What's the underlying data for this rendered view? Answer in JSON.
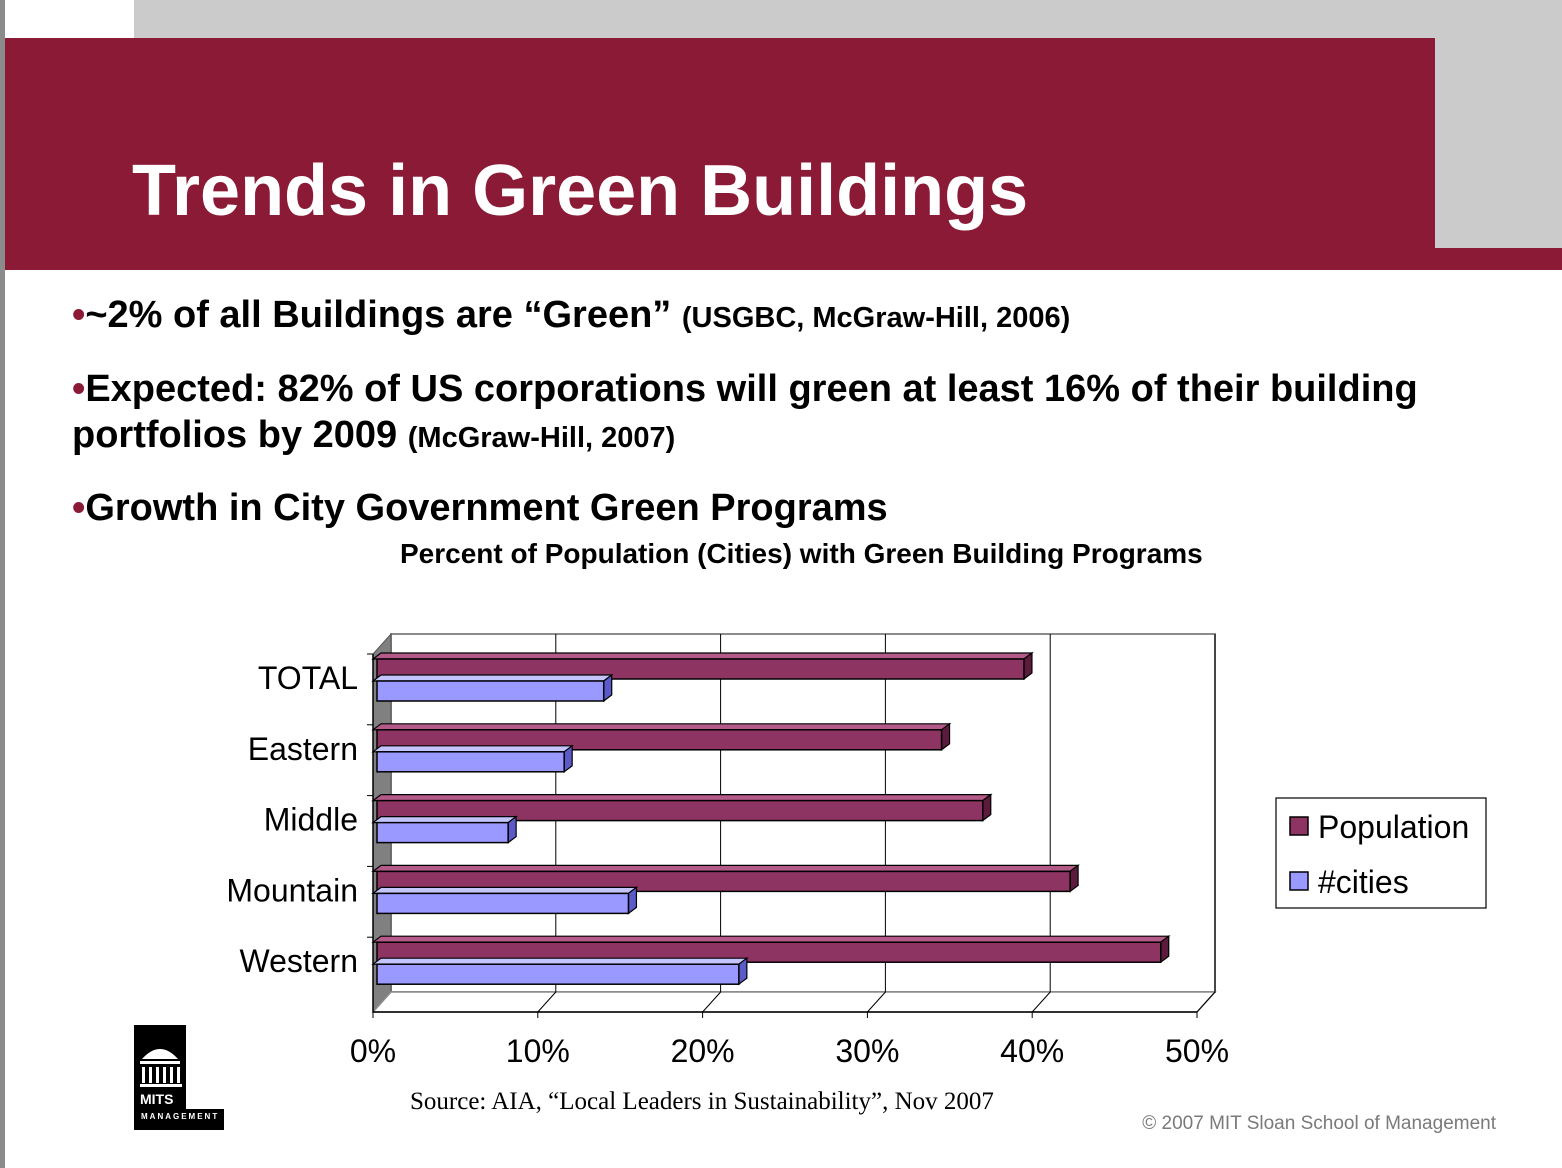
{
  "slide": {
    "title": "Trends in Green Buildings",
    "bullets": [
      {
        "marker": "•",
        "text": "~2% of all Buildings are “Green”",
        "cite": "(USGBC, McGraw-Hill, 2006)"
      },
      {
        "marker": "•",
        "text": "Expected: 82% of US corporations will green at least 16% of their building portfolios by 2009",
        "cite": "(McGraw-Hill, 2007)"
      },
      {
        "marker": "•",
        "text": "Growth in City Government Green Programs",
        "cite": ""
      }
    ],
    "source": "Source: AIA, “Local Leaders in Sustainability”, Nov 2007",
    "copyright": "© 2007 MIT Sloan School of Management",
    "logo": {
      "text": "MITS",
      "subtext": "MANAGEMENT"
    }
  },
  "colors": {
    "brand": "#8b1a36",
    "population": "#8e3462",
    "cities": "#9999ff"
  },
  "chart_data": {
    "type": "bar",
    "orientation": "horizontal",
    "title": "Percent of Population (Cities) with Green Building Programs",
    "xlabel": "",
    "ylabel": "",
    "categories": [
      "TOTAL",
      "Eastern",
      "Middle",
      "Mountain",
      "Western"
    ],
    "series": [
      {
        "name": "Population",
        "values": [
          39.5,
          34.5,
          37,
          42.3,
          47.8
        ]
      },
      {
        "name": "#cities",
        "values": [
          14,
          11.6,
          8.2,
          15.5,
          22.2
        ]
      }
    ],
    "xlim": [
      0,
      50
    ],
    "ticks": [
      "0%",
      "10%",
      "20%",
      "30%",
      "40%",
      "50%"
    ],
    "grid": true,
    "legend_position": "right",
    "style": "3d"
  }
}
